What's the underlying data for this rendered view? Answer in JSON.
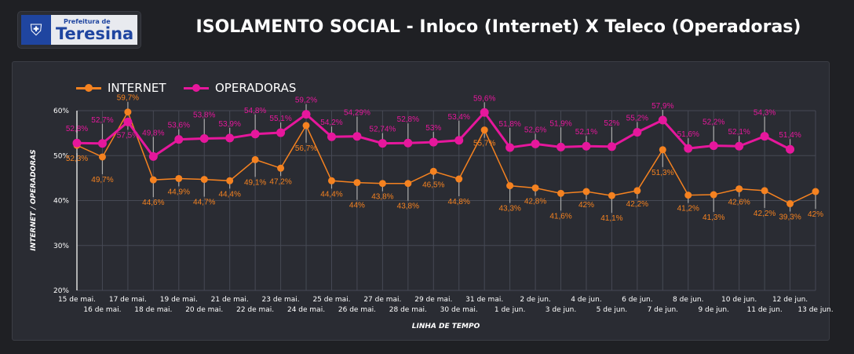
{
  "header": {
    "logo_prefix": "Prefeitura de",
    "logo_name": "Teresina",
    "title": "ISOLAMENTO SOCIAL - Inloco (Internet) X Teleco (Operadoras)"
  },
  "colors": {
    "internet": "#f58220",
    "operadoras": "#e6179c",
    "grid": "#464954",
    "text": "#ffffff"
  },
  "chart_data": {
    "type": "line",
    "title": "ISOLAMENTO SOCIAL - Inloco (Internet) X Teleco (Operadoras)",
    "xlabel": "LINHA DE TEMPO",
    "ylabel": "INTERNET / OPERADORAS",
    "ylim": [
      20,
      60
    ],
    "yticks": [
      "20%",
      "30%",
      "40%",
      "50%",
      "60%"
    ],
    "legend": "top-left",
    "categories": [
      "15 de mai.",
      "16 de mai.",
      "17 de mai.",
      "18 de mai.",
      "19 de mai.",
      "20 de mai.",
      "21 de mai.",
      "22 de mai.",
      "23 de mai.",
      "24 de mai.",
      "25 de mai.",
      "26 de mai.",
      "27 de mai.",
      "28 de mai.",
      "29 de mai.",
      "30 de mai.",
      "31 de mai.",
      "1 de jun.",
      "2 de jun.",
      "3 de jun.",
      "4 de jun.",
      "5 de jun.",
      "6 de jun.",
      "7 de jun.",
      "8 de jun.",
      "9 de jun.",
      "10 de jun.",
      "11 de jun.",
      "12 de jun.",
      "13 de jun."
    ],
    "series": [
      {
        "name": "INTERNET",
        "values": [
          52.3,
          49.7,
          59.7,
          44.6,
          44.9,
          44.7,
          44.4,
          49.1,
          47.2,
          56.7,
          44.4,
          44,
          43.8,
          43.8,
          46.5,
          44.8,
          55.7,
          43.3,
          42.8,
          41.6,
          42,
          41.1,
          42.2,
          51.3,
          41.2,
          41.3,
          42.6,
          42.2,
          39.3,
          42
        ],
        "labels": [
          "52,3%",
          "49,7%",
          "59,7%",
          "44,6%",
          "44,9%",
          "44,7%",
          "44,4%",
          "49,1%",
          "47,2%",
          "56,7%",
          "44,4%",
          "44%",
          "43,8%",
          "43,8%",
          "46,5%",
          "44,8%",
          "55,7%",
          "43,3%",
          "42,8%",
          "41,6%",
          "42%",
          "41,1%",
          "42,2%",
          "51,3%",
          "41,2%",
          "41,3%",
          "42,6%",
          "42,2%",
          "39,3%",
          "42%"
        ]
      },
      {
        "name": "OPERADORAS",
        "values": [
          52.8,
          52.7,
          57.5,
          49.8,
          53.6,
          53.8,
          53.9,
          54.8,
          55.1,
          59.2,
          54.2,
          54.29,
          52.74,
          52.8,
          53,
          53.4,
          59.6,
          51.8,
          52.6,
          51.9,
          52.1,
          52,
          55.2,
          57.9,
          51.6,
          52.2,
          52.1,
          54.3,
          51.4,
          null
        ],
        "labels": [
          "52,8%",
          "52,7%",
          "57,5%",
          "49,8%",
          "53,6%",
          "53,8%",
          "53,9%",
          "54,8%",
          "55,1%",
          "59,2%",
          "54,2%",
          "54,29%",
          "52,74%",
          "52,8%",
          "53%",
          "53,4%",
          "59,6%",
          "51,8%",
          "52,6%",
          "51,9%",
          "52,1%",
          "52%",
          "55,2%",
          "57,9%",
          "51,6%",
          "52,2%",
          "52,1%",
          "54,3%",
          "51,4%",
          null
        ]
      }
    ]
  }
}
